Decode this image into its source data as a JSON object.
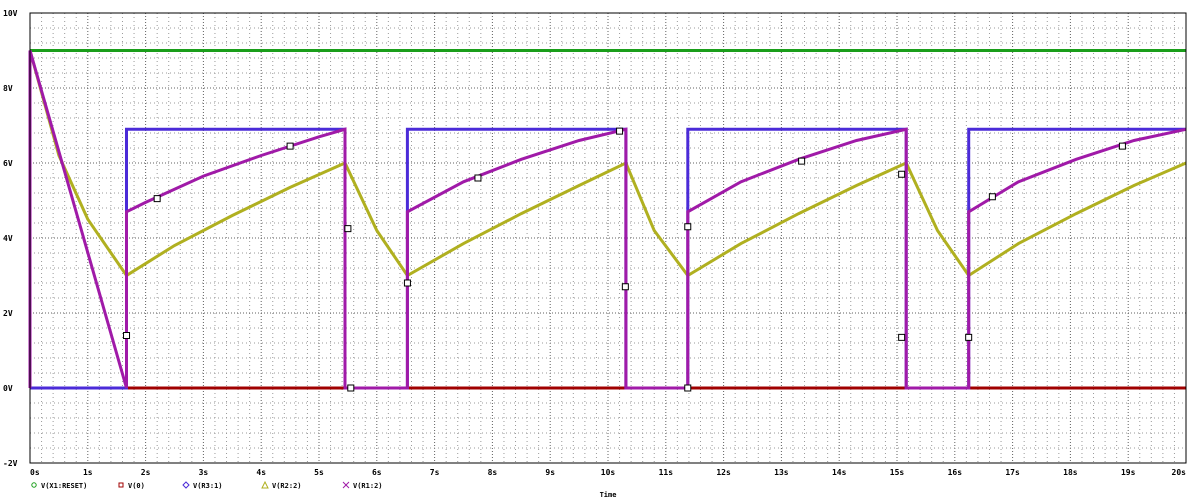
{
  "chart_data": {
    "type": "line",
    "xlabel": "Time",
    "ylabel": "",
    "xlim": [
      0,
      20
    ],
    "ylim": [
      -2,
      10
    ],
    "x_ticks": [
      "0s",
      "1s",
      "2s",
      "3s",
      "4s",
      "5s",
      "6s",
      "7s",
      "8s",
      "9s",
      "10s",
      "11s",
      "12s",
      "13s",
      "14s",
      "15s",
      "16s",
      "17s",
      "18s",
      "19s",
      "20s"
    ],
    "y_ticks": [
      "-2V",
      "0V",
      "2V",
      "4V",
      "6V",
      "8V",
      "10V"
    ],
    "grid": "dotted",
    "legend_position": "bottom-left",
    "series": [
      {
        "name": "V(X1:RESET)",
        "color": "#1a9e1a",
        "marker": "circle",
        "x": [
          0,
          20
        ],
        "y": [
          9,
          9
        ]
      },
      {
        "name": "V(0)",
        "color": "#a00000",
        "marker": "square",
        "x": [
          0,
          20
        ],
        "y": [
          0,
          0
        ]
      },
      {
        "name": "V(R3:1)",
        "color": "#4b2bd8",
        "marker": "diamond",
        "x": [
          0,
          1.67,
          1.67,
          5.45,
          5.45,
          6.53,
          6.53,
          10.31,
          10.31,
          11.38,
          11.38,
          15.16,
          15.16,
          16.24,
          16.24,
          20
        ],
        "y": [
          0,
          0,
          6.9,
          6.9,
          0,
          0,
          6.9,
          6.9,
          0,
          0,
          6.9,
          6.9,
          0,
          0,
          6.9,
          6.9
        ]
      },
      {
        "name": "V(R2:2)",
        "color": "#b0b020",
        "marker": "triangle",
        "x": [
          0,
          0.5,
          1.0,
          1.67,
          2.5,
          3.5,
          4.5,
          5.45,
          6.0,
          6.53,
          7.5,
          8.5,
          9.5,
          10.31,
          10.8,
          11.38,
          12.3,
          13.3,
          14.3,
          15.16,
          15.7,
          16.24,
          17.1,
          18.1,
          19.1,
          20
        ],
        "y": [
          9.0,
          6.2,
          4.5,
          3.0,
          3.8,
          4.6,
          5.35,
          6.0,
          4.2,
          3.0,
          3.85,
          4.65,
          5.4,
          6.0,
          4.2,
          3.0,
          3.85,
          4.65,
          5.4,
          6.0,
          4.2,
          3.0,
          3.85,
          4.65,
          5.4,
          6.0
        ]
      },
      {
        "name": "V(R1:2)",
        "color": "#a01aa8",
        "marker": "x",
        "x": [
          0,
          0,
          1.67,
          1.67,
          2.0,
          3.0,
          4.0,
          5.0,
          5.45,
          5.45,
          6.53,
          6.53,
          7.5,
          8.5,
          9.5,
          10.31,
          10.31,
          11.38,
          11.38,
          12.3,
          13.3,
          14.3,
          15.16,
          15.16,
          16.24,
          16.24,
          17.1,
          18.1,
          19.1,
          20
        ],
        "y": [
          0,
          9,
          0,
          4.7,
          4.95,
          5.65,
          6.2,
          6.7,
          6.9,
          0,
          0,
          4.7,
          5.5,
          6.1,
          6.6,
          6.9,
          0,
          0,
          4.7,
          5.5,
          6.1,
          6.6,
          6.9,
          0,
          0,
          4.7,
          5.5,
          6.1,
          6.6,
          6.9
        ]
      }
    ]
  }
}
